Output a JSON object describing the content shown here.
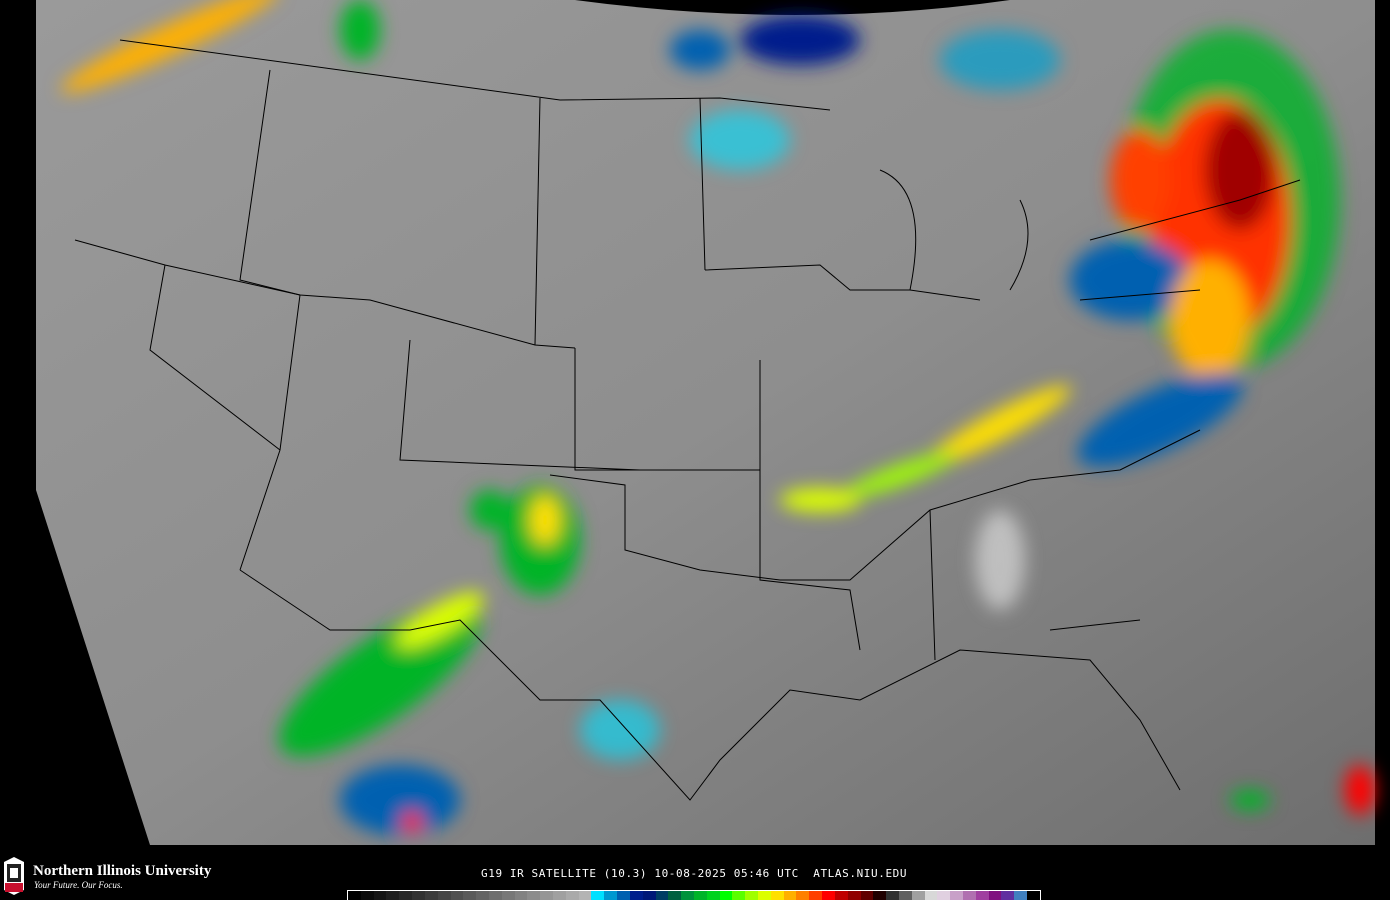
{
  "product": {
    "title": "G19 IR SATELLITE (10.3) 10-08-2025 05:46 UTC  ATLAS.NIU.EDU"
  },
  "branding": {
    "name": "Northern Illinois University",
    "tagline": "Your Future. Our Focus.",
    "logo_text": "NIU",
    "accent": "#c8102e"
  },
  "colorbar": {
    "colors": [
      "#000000",
      "#0a0a0a",
      "#141414",
      "#1e1e1e",
      "#282828",
      "#323232",
      "#3c3c3c",
      "#464646",
      "#505050",
      "#5a5a5a",
      "#646464",
      "#6e6e6e",
      "#787878",
      "#828282",
      "#8c8c8c",
      "#969696",
      "#a0a0a0",
      "#aaaaaa",
      "#b4b4b4",
      "#00e0ff",
      "#0098d0",
      "#0060b0",
      "#001e8c",
      "#001878",
      "#003c64",
      "#006040",
      "#00923c",
      "#00b428",
      "#00d21e",
      "#00ff00",
      "#5aff00",
      "#a0ff00",
      "#dcff00",
      "#ffe000",
      "#ffb000",
      "#ff8000",
      "#ff4000",
      "#ff0000",
      "#c00000",
      "#900000",
      "#600000",
      "#200000",
      "#303030",
      "#606060",
      "#a0a0a0",
      "#d8d8d8",
      "#e0d0e0",
      "#c8a0c8",
      "#b070b0",
      "#a040a0",
      "#801080",
      "#6030a0",
      "#4080c0",
      "#000000"
    ]
  }
}
